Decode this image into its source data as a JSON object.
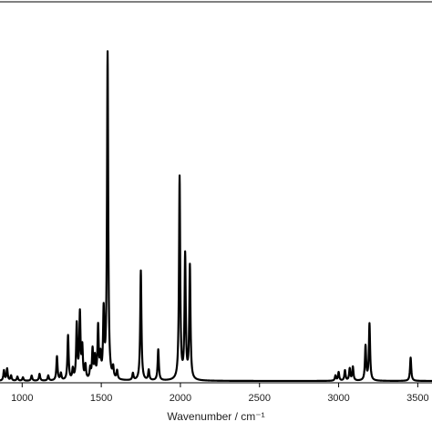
{
  "chart_data": {
    "type": "line",
    "xlabel": "Wavenumber / cm⁻¹",
    "ylabel": "",
    "xlim": [
      860,
      3590
    ],
    "ylim": [
      0,
      1.05
    ],
    "grid": false,
    "legend": "none",
    "x_ticks": [
      1000,
      1500,
      2000,
      2500,
      3000,
      3500
    ],
    "line_color": "#000000",
    "series": [
      {
        "peaks": [
          {
            "x": 885,
            "y": 0.03
          },
          {
            "x": 905,
            "y": 0.035
          },
          {
            "x": 930,
            "y": 0.015
          },
          {
            "x": 970,
            "y": 0.012
          },
          {
            "x": 1005,
            "y": 0.01
          },
          {
            "x": 1060,
            "y": 0.015
          },
          {
            "x": 1110,
            "y": 0.02
          },
          {
            "x": 1165,
            "y": 0.015
          },
          {
            "x": 1220,
            "y": 0.07
          },
          {
            "x": 1245,
            "y": 0.02
          },
          {
            "x": 1290,
            "y": 0.13
          },
          {
            "x": 1320,
            "y": 0.03
          },
          {
            "x": 1345,
            "y": 0.16
          },
          {
            "x": 1365,
            "y": 0.19
          },
          {
            "x": 1380,
            "y": 0.09
          },
          {
            "x": 1400,
            "y": 0.04
          },
          {
            "x": 1430,
            "y": 0.03
          },
          {
            "x": 1445,
            "y": 0.085
          },
          {
            "x": 1460,
            "y": 0.06
          },
          {
            "x": 1480,
            "y": 0.15
          },
          {
            "x": 1495,
            "y": 0.06
          },
          {
            "x": 1515,
            "y": 0.19
          },
          {
            "x": 1540,
            "y": 0.95
          },
          {
            "x": 1575,
            "y": 0.03
          },
          {
            "x": 1600,
            "y": 0.025
          },
          {
            "x": 1700,
            "y": 0.02
          },
          {
            "x": 1750,
            "y": 0.32
          },
          {
            "x": 1800,
            "y": 0.03
          },
          {
            "x": 1860,
            "y": 0.09
          },
          {
            "x": 1995,
            "y": 0.59
          },
          {
            "x": 2030,
            "y": 0.36
          },
          {
            "x": 2060,
            "y": 0.33
          },
          {
            "x": 2980,
            "y": 0.015
          },
          {
            "x": 3000,
            "y": 0.025
          },
          {
            "x": 3040,
            "y": 0.03
          },
          {
            "x": 3070,
            "y": 0.035
          },
          {
            "x": 3090,
            "y": 0.04
          },
          {
            "x": 3170,
            "y": 0.1
          },
          {
            "x": 3195,
            "y": 0.165
          },
          {
            "x": 3455,
            "y": 0.068
          }
        ]
      }
    ]
  }
}
